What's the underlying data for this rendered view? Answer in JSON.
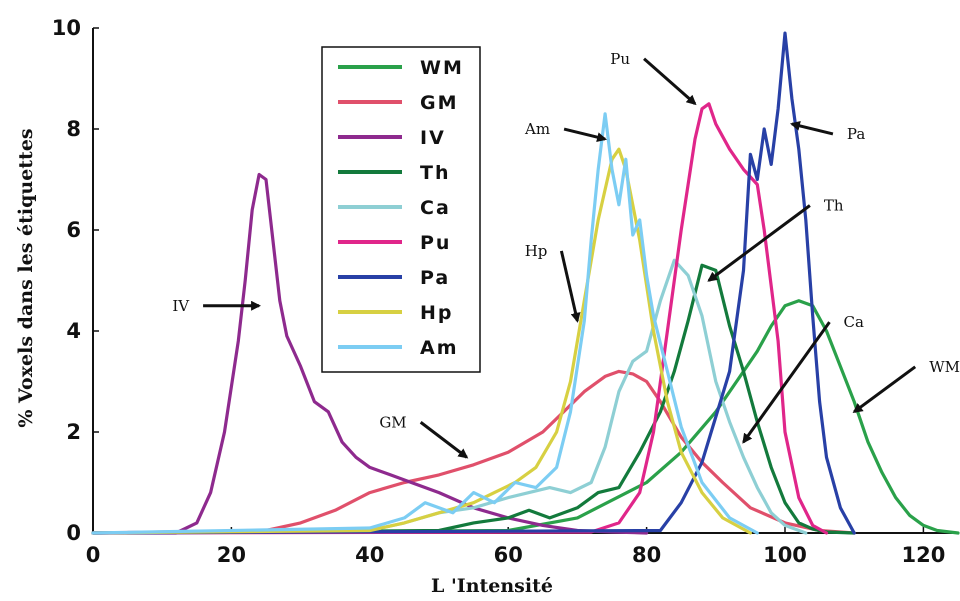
{
  "chart_data": {
    "type": "line",
    "title": "",
    "xlabel": "L 'Intensité",
    "ylabel": "% Voxels dans les étiquettes",
    "xlim": [
      0,
      125
    ],
    "ylim": [
      0,
      10
    ],
    "xticks": [
      0,
      20,
      40,
      60,
      80,
      100,
      120
    ],
    "yticks": [
      0,
      2,
      4,
      6,
      8,
      10
    ],
    "grid": false,
    "legend_position": "top-left",
    "series": [
      {
        "name": "WM",
        "color": "#2aa14a",
        "x": [
          0,
          60,
          70,
          80,
          85,
          90,
          93,
          96,
          98,
          100,
          102,
          104,
          106,
          108,
          110,
          112,
          114,
          116,
          118,
          120,
          122,
          125
        ],
        "y": [
          0,
          0.05,
          0.3,
          1.0,
          1.6,
          2.4,
          3.0,
          3.6,
          4.1,
          4.5,
          4.6,
          4.5,
          4.0,
          3.3,
          2.6,
          1.8,
          1.2,
          0.7,
          0.35,
          0.15,
          0.05,
          0
        ]
      },
      {
        "name": "GM",
        "color": "#e0506b",
        "x": [
          0,
          25,
          30,
          35,
          40,
          45,
          50,
          55,
          60,
          65,
          68,
          71,
          74,
          76,
          78,
          80,
          82,
          85,
          88,
          91,
          95,
          100,
          105,
          110
        ],
        "y": [
          0,
          0.05,
          0.2,
          0.45,
          0.8,
          1.0,
          1.15,
          1.35,
          1.6,
          2.0,
          2.4,
          2.8,
          3.1,
          3.2,
          3.15,
          3.0,
          2.6,
          1.9,
          1.4,
          1.0,
          0.5,
          0.2,
          0.05,
          0
        ]
      },
      {
        "name": "IV",
        "color": "#8e2a8e",
        "x": [
          0,
          12,
          15,
          17,
          19,
          21,
          22,
          23,
          24,
          25,
          26,
          27,
          28,
          30,
          32,
          34,
          36,
          38,
          40,
          43,
          46,
          50,
          55,
          60,
          65,
          70,
          75,
          80
        ],
        "y": [
          0,
          0,
          0.2,
          0.8,
          2.0,
          3.8,
          5.0,
          6.4,
          7.1,
          7.0,
          5.8,
          4.6,
          3.9,
          3.3,
          2.6,
          2.4,
          1.8,
          1.5,
          1.3,
          1.15,
          1.0,
          0.8,
          0.5,
          0.3,
          0.15,
          0.05,
          0.02,
          0
        ]
      },
      {
        "name": "Th",
        "color": "#137a3c",
        "x": [
          0,
          50,
          55,
          60,
          63,
          66,
          70,
          73,
          76,
          79,
          82,
          84,
          86,
          88,
          90,
          92,
          94,
          96,
          98,
          100,
          102,
          104,
          106,
          110
        ],
        "y": [
          0,
          0.05,
          0.2,
          0.3,
          0.45,
          0.3,
          0.5,
          0.8,
          0.9,
          1.6,
          2.4,
          3.2,
          4.2,
          5.3,
          5.2,
          4.1,
          3.2,
          2.2,
          1.3,
          0.6,
          0.2,
          0.08,
          0.02,
          0
        ]
      },
      {
        "name": "Ca",
        "color": "#8ecfd4",
        "x": [
          0,
          40,
          45,
          50,
          55,
          60,
          63,
          66,
          69,
          72,
          74,
          76,
          78,
          80,
          82,
          84,
          86,
          88,
          90,
          92,
          94,
          96,
          98,
          100,
          103
        ],
        "y": [
          0,
          0.05,
          0.2,
          0.4,
          0.5,
          0.7,
          0.8,
          0.9,
          0.8,
          1.0,
          1.7,
          2.8,
          3.4,
          3.6,
          4.6,
          5.4,
          5.1,
          4.3,
          3.0,
          2.2,
          1.5,
          0.9,
          0.4,
          0.15,
          0
        ]
      },
      {
        "name": "Pu",
        "color": "#e0268a",
        "x": [
          0,
          72,
          76,
          79,
          81,
          83,
          85,
          87,
          88,
          89,
          90,
          92,
          94,
          96,
          97,
          99,
          100,
          102,
          104,
          106
        ],
        "y": [
          0,
          0.02,
          0.2,
          0.8,
          2.0,
          4.0,
          6.0,
          7.8,
          8.4,
          8.5,
          8.1,
          7.6,
          7.2,
          6.9,
          6.0,
          3.8,
          2.0,
          0.7,
          0.15,
          0
        ]
      },
      {
        "name": "Pa",
        "color": "#2840a6",
        "x": [
          0,
          82,
          85,
          88,
          90,
          92,
          94,
          95,
          96,
          97,
          98,
          99,
          100,
          101,
          102,
          103,
          104,
          105,
          106,
          108,
          110
        ],
        "y": [
          0,
          0.05,
          0.6,
          1.4,
          2.3,
          3.2,
          5.2,
          7.5,
          7.0,
          8.0,
          7.3,
          8.4,
          9.9,
          8.6,
          7.6,
          6.2,
          4.3,
          2.6,
          1.5,
          0.5,
          0
        ]
      },
      {
        "name": "Hp",
        "color": "#d7d042",
        "x": [
          0,
          40,
          45,
          50,
          55,
          58,
          61,
          64,
          67,
          69,
          71,
          73,
          75,
          76,
          77,
          79,
          81,
          83,
          85,
          88,
          91,
          95
        ],
        "y": [
          0,
          0.05,
          0.2,
          0.4,
          0.6,
          0.8,
          1.0,
          1.3,
          2.0,
          3.0,
          4.6,
          6.2,
          7.4,
          7.6,
          7.2,
          5.8,
          4.0,
          2.6,
          1.6,
          0.8,
          0.3,
          0
        ]
      },
      {
        "name": "Am",
        "color": "#7ccdf3",
        "x": [
          0,
          40,
          45,
          48,
          52,
          55,
          58,
          61,
          64,
          67,
          69,
          71,
          72,
          73,
          74,
          75,
          76,
          77,
          78,
          79,
          80,
          81,
          83,
          85,
          88,
          92,
          96
        ],
        "y": [
          0,
          0.1,
          0.3,
          0.6,
          0.4,
          0.8,
          0.6,
          1.0,
          0.9,
          1.3,
          2.4,
          4.2,
          5.8,
          7.2,
          8.3,
          7.2,
          6.5,
          7.4,
          5.9,
          6.2,
          5.1,
          4.3,
          3.2,
          2.1,
          1.0,
          0.3,
          0
        ]
      }
    ],
    "annotations": [
      {
        "text": "IV",
        "x": 24,
        "y": 4.5
      },
      {
        "text": "GM",
        "x": 54,
        "y": 1.5
      },
      {
        "text": "Hp",
        "x": 70,
        "y": 4.2
      },
      {
        "text": "Am",
        "x": 74,
        "y": 7.8
      },
      {
        "text": "Pu",
        "x": 87,
        "y": 8.5
      },
      {
        "text": "Pa",
        "x": 101,
        "y": 8.1
      },
      {
        "text": "Th",
        "x": 89,
        "y": 5.0
      },
      {
        "text": "Ca",
        "x": 94,
        "y": 1.8
      },
      {
        "text": "WM",
        "x": 110,
        "y": 2.4
      }
    ]
  }
}
